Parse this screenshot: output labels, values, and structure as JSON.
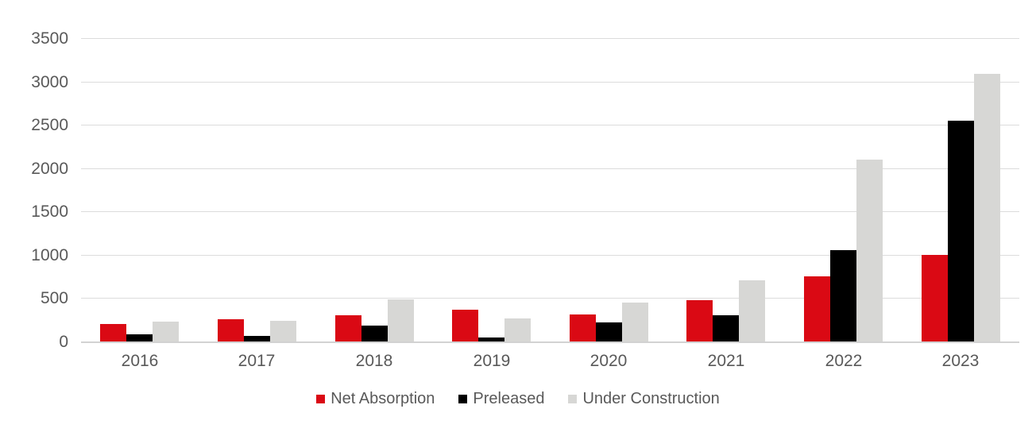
{
  "chart_data": {
    "type": "bar",
    "title": "",
    "xlabel": "",
    "ylabel": "",
    "categories": [
      "2016",
      "2017",
      "2018",
      "2019",
      "2020",
      "2021",
      "2022",
      "2023"
    ],
    "series": [
      {
        "name": "Net Absorption",
        "color": "#da0914",
        "values": [
          200,
          255,
          300,
          365,
          315,
          480,
          750,
          1000
        ]
      },
      {
        "name": "Preleased",
        "color": "#000000",
        "values": [
          85,
          65,
          185,
          50,
          220,
          300,
          1055,
          2550
        ]
      },
      {
        "name": "Under Construction",
        "color": "#d7d7d5",
        "values": [
          225,
          235,
          485,
          265,
          450,
          710,
          2100,
          3085
        ]
      }
    ],
    "ylim": [
      0,
      3500
    ],
    "yticks": [
      0,
      500,
      1000,
      1500,
      2000,
      2500,
      3000,
      3500
    ],
    "grid": "horizontal",
    "gridline_color": "#dcdcdc",
    "axis_label_color": "#595959",
    "legend_position": "bottom"
  }
}
